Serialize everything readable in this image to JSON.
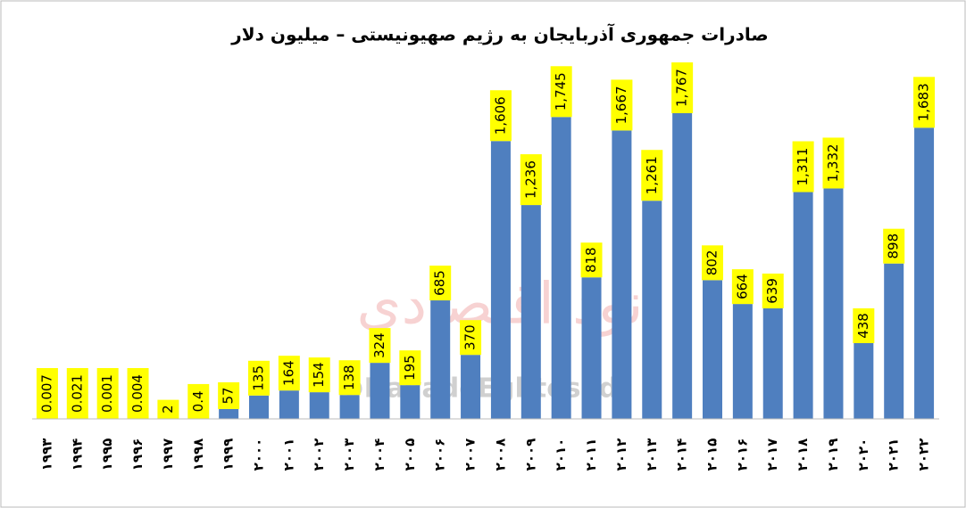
{
  "chart_data": {
    "type": "bar",
    "title": "صادرات جمهوری آذربایجان به رژیم صهیونیستی  – میلیون دلار",
    "watermark": "@NavadeEghtesadi",
    "watermark_logo_text": "نود اقتصادی",
    "categories": [
      "۱۹۹۳",
      "۱۹۹۴",
      "۱۹۹۵",
      "۱۹۹۶",
      "۱۹۹۷",
      "۱۹۹۸",
      "۱۹۹۹",
      "۲۰۰۰",
      "۲۰۰۱",
      "۲۰۰۲",
      "۲۰۰۳",
      "۲۰۰۴",
      "۲۰۰۵",
      "۲۰۰۶",
      "۲۰۰۷",
      "۲۰۰۸",
      "۲۰۰۹",
      "۲۰۱۰",
      "۲۰۱۱",
      "۲۰۱۲",
      "۲۰۱۳",
      "۲۰۱۴",
      "۲۰۱۵",
      "۲۰۱۶",
      "۲۰۱۷",
      "۲۰۱۸",
      "۲۰۱۹",
      "۲۰۲۰",
      "۲۰۲۱",
      "۲۰۲۲"
    ],
    "values": [
      0.007,
      0.021,
      0.001,
      0.004,
      2,
      0.4,
      57,
      135,
      164,
      154,
      138,
      324,
      195,
      685,
      370,
      1606,
      1236,
      1745,
      818,
      1667,
      1261,
      1767,
      802,
      664,
      639,
      1311,
      1332,
      438,
      898,
      1683
    ],
    "value_labels": [
      "0.007",
      "0.021",
      "0.001",
      "0.004",
      "2",
      "0.4",
      "57",
      "135",
      "164",
      "154",
      "138",
      "324",
      "195",
      "685",
      "370",
      "1,606",
      "1,236",
      "1,745",
      "818",
      "1,667",
      "1,261",
      "1,767",
      "802",
      "664",
      "639",
      "1,311",
      "1,332",
      "438",
      "898",
      "1,683"
    ],
    "color": "#4f7fbf",
    "label_color": "#ffff00"
  }
}
